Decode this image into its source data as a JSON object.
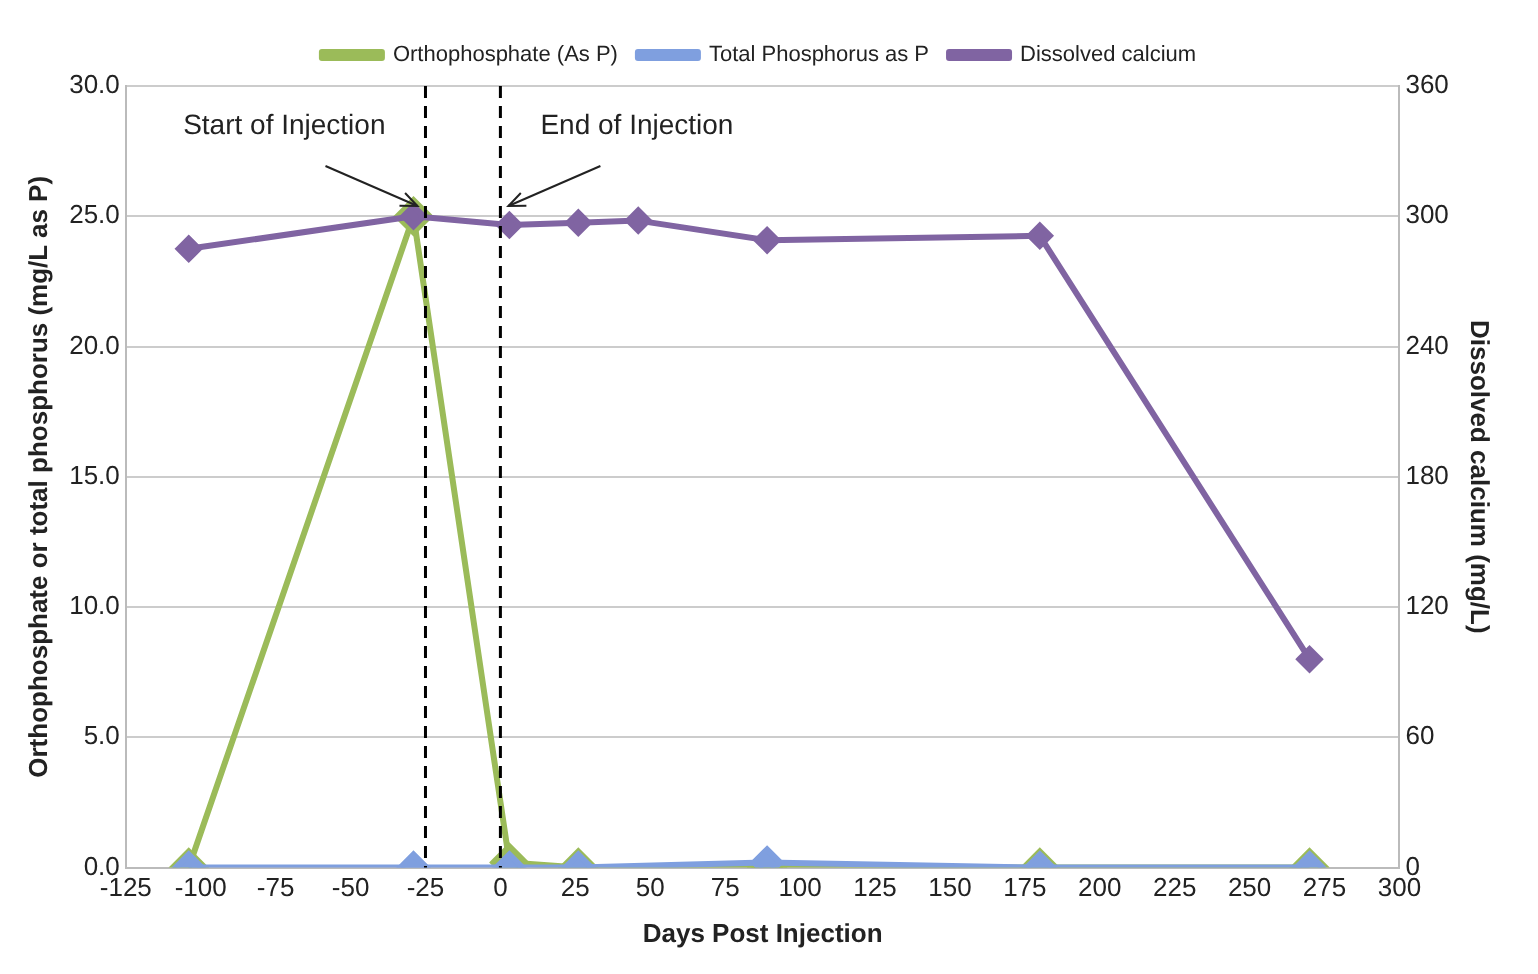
{
  "chart_data": {
    "type": "line",
    "xlabel": "Days Post Injection",
    "ylabel": "Orthophosphate or total phosphorus (mg/L as P)",
    "y2label": "Dissolved calcium (mg/L)",
    "series": [
      {
        "name": "Orthophosphate (As P)",
        "color": "#9bbb59",
        "x": [
          -104,
          -29,
          3,
          26,
          89,
          180,
          270
        ],
        "values": [
          0,
          25,
          0.2,
          0,
          0,
          0,
          0
        ]
      },
      {
        "name": "Total Phosphorus as P",
        "color": "#7f9fdf",
        "x": [
          -104,
          -29,
          3,
          26,
          89,
          180,
          270
        ],
        "values": [
          0,
          0,
          0,
          0,
          0.2,
          0,
          0
        ]
      },
      {
        "name": "Dissolved calcium",
        "color": "#8064a2",
        "axis": "y2",
        "x": [
          -104,
          -29,
          3,
          26,
          46,
          89,
          180,
          270
        ],
        "values": [
          285,
          300,
          296,
          297,
          298,
          289,
          291,
          96
        ]
      }
    ],
    "xlim": [
      -125,
      300
    ],
    "xticks": [
      -125,
      -100,
      -75,
      -50,
      -25,
      0,
      25,
      50,
      75,
      100,
      125,
      150,
      175,
      200,
      225,
      250,
      275,
      300
    ],
    "ylim": [
      0,
      30
    ],
    "yticks": [
      {
        "value": 0,
        "label": "0.0"
      },
      {
        "value": 5,
        "label": "5.0"
      },
      {
        "value": 10,
        "label": "10.0"
      },
      {
        "value": 15,
        "label": "15.0"
      },
      {
        "value": 20,
        "label": "20.0"
      },
      {
        "value": 25,
        "label": "25.0"
      },
      {
        "value": 30,
        "label": "30.0"
      }
    ],
    "y2lim": [
      0,
      360
    ],
    "y2ticks": [
      0,
      60,
      120,
      180,
      240,
      300,
      360
    ],
    "ref_lines": [
      {
        "axis": "x",
        "value": -25,
        "label": "Start of Injection",
        "color": "#000000",
        "line_style": "dashed"
      },
      {
        "axis": "x",
        "value": 0,
        "label": "End of Injection",
        "color": "#000000",
        "line_style": "dashed"
      }
    ],
    "grid": "y",
    "legend": "top",
    "marker": "diamond",
    "line_style": "solid"
  }
}
